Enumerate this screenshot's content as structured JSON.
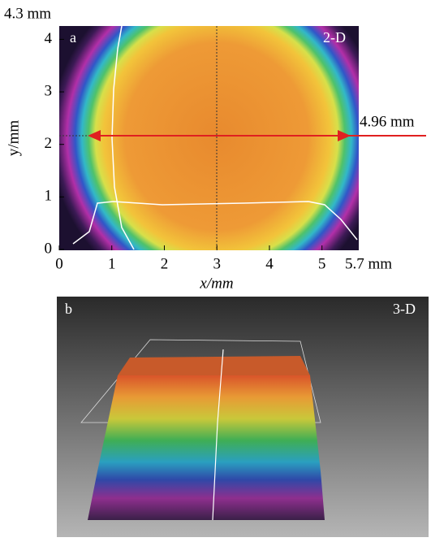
{
  "panel_a": {
    "label": "a",
    "tag": "2-D",
    "x_label": "x/mm",
    "y_label": "y/mm",
    "xlim": [
      0,
      {
        "value": 5.7,
        "label": "5.7 mm"
      }
    ],
    "xticks": [
      0,
      1,
      2,
      3,
      4,
      5
    ],
    "ylim": [
      0,
      {
        "value": 4.3,
        "label": "4.3 mm"
      }
    ],
    "yticks": [
      0,
      1,
      2,
      3,
      4
    ],
    "diameter": {
      "value": 4.96,
      "label": "4.96 mm"
    }
  },
  "panel_b": {
    "label": "b",
    "tag": "3-D"
  }
}
